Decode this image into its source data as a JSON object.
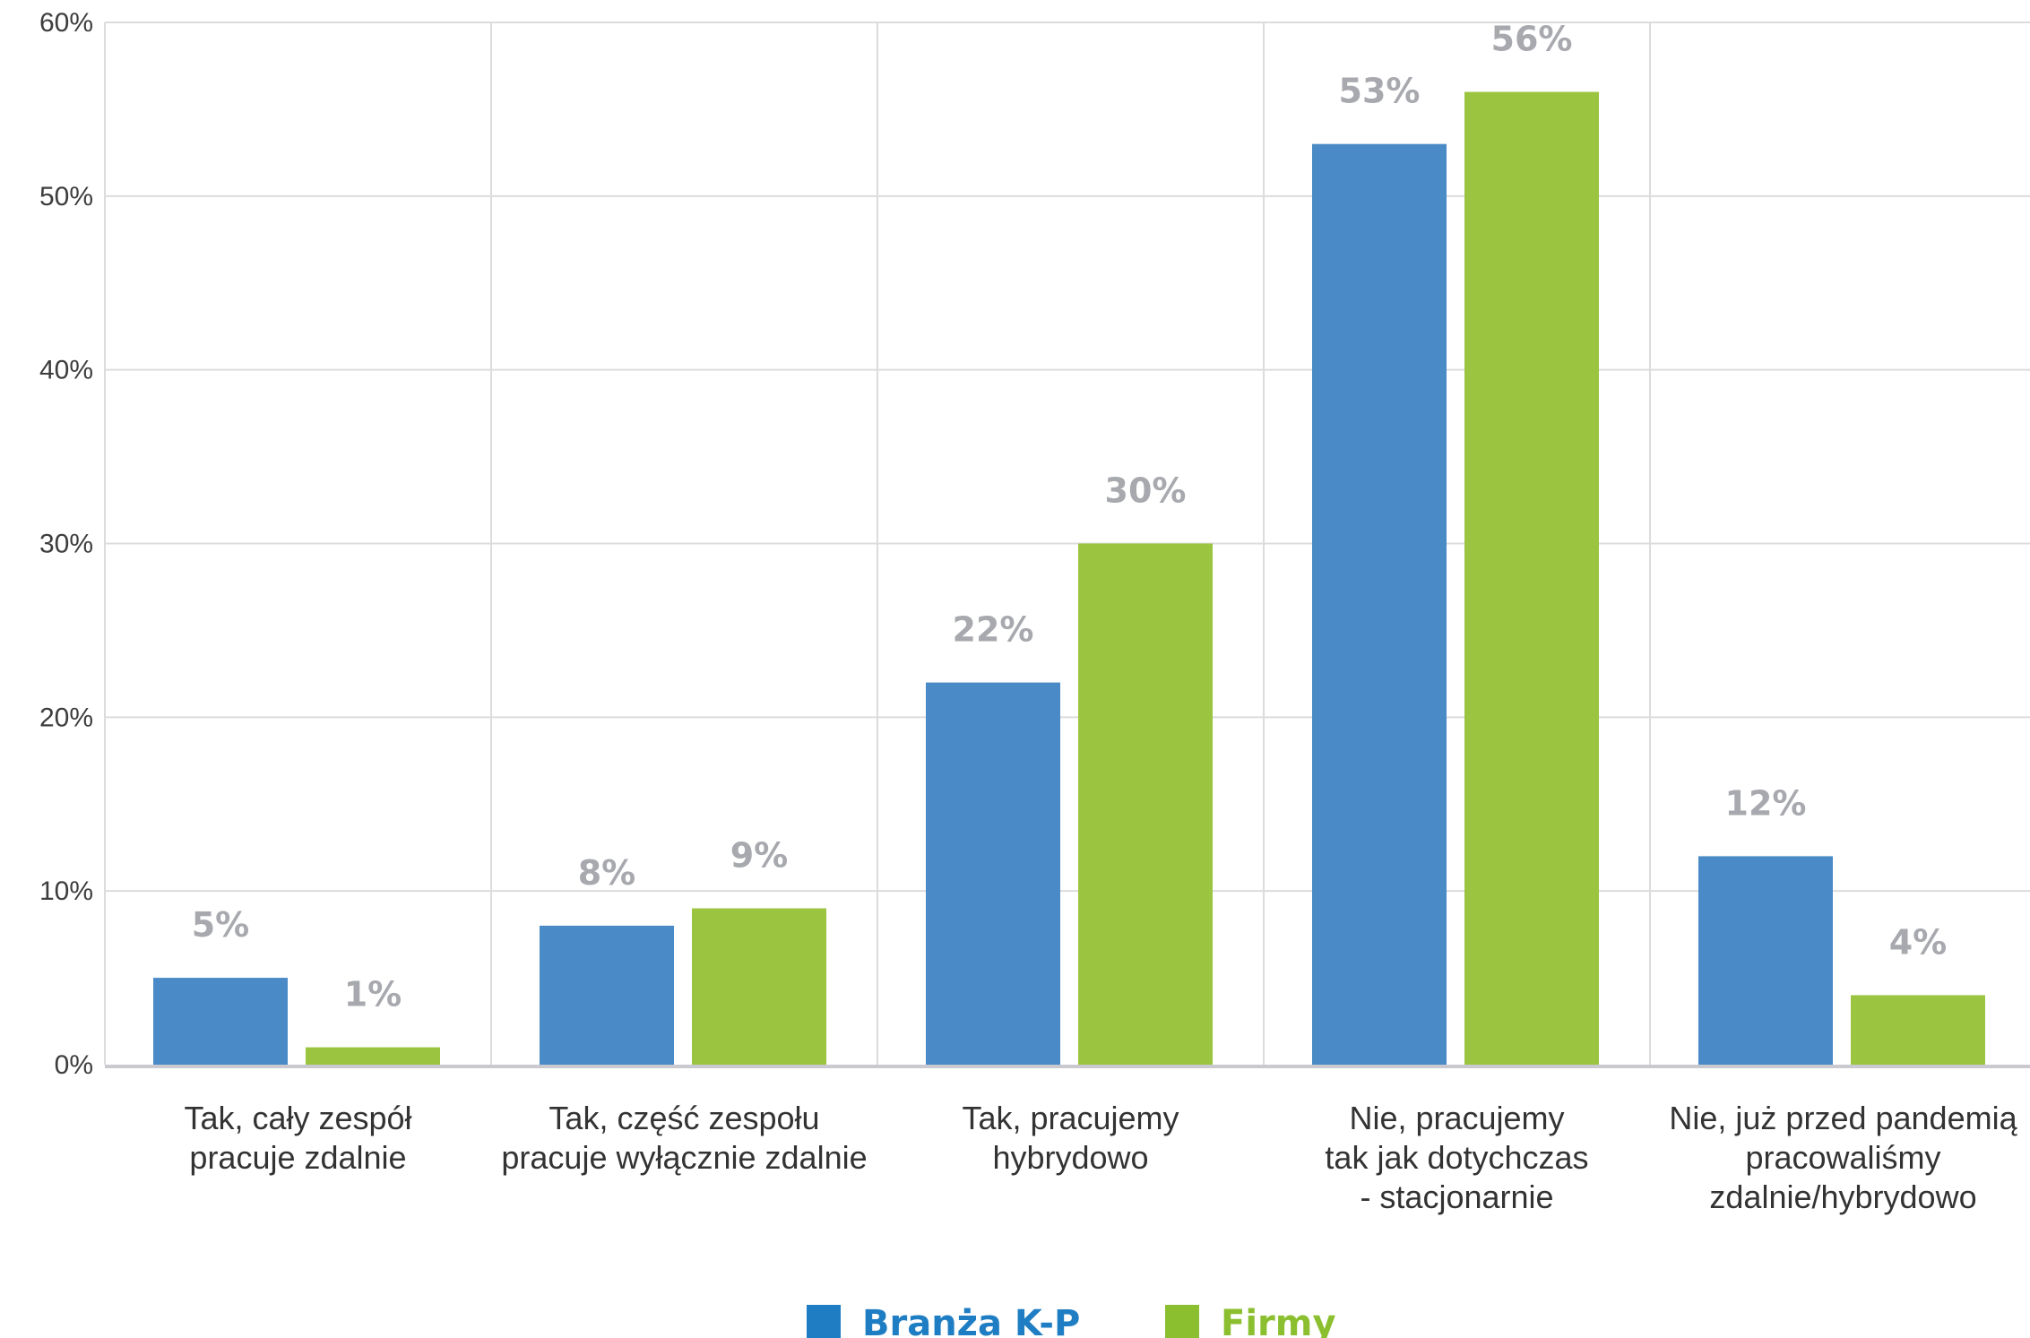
{
  "chart_data": {
    "type": "bar",
    "categories": [
      [
        "Tak, cały zespół",
        "pracuje zdalnie"
      ],
      [
        "Tak, część zespołu",
        "pracuje wyłącznie zdalnie"
      ],
      [
        "Tak,  pracujemy",
        "hybrydowo"
      ],
      [
        "Nie, pracujemy",
        "tak jak dotychczas",
        "- stacjonarnie"
      ],
      [
        "Nie, już przed pandemią",
        "pracowaliśmy",
        "zdalnie/hybrydowo"
      ]
    ],
    "series": [
      {
        "name": "Branża K-P",
        "color": "#4a8ac6",
        "legend_color": "#1f7ec3",
        "values": [
          5,
          8,
          22,
          53,
          12
        ],
        "labels": [
          "5%",
          "8%",
          "22%",
          "53%",
          "12%"
        ]
      },
      {
        "name": "Firmy",
        "color": "#9bc441",
        "legend_color": "#8bbf2f",
        "values": [
          1,
          9,
          30,
          56,
          4
        ],
        "labels": [
          "1%",
          "9%",
          "30%",
          "56%",
          "4%"
        ]
      }
    ],
    "ylim": [
      0,
      60
    ],
    "yticks": [
      0,
      10,
      20,
      30,
      40,
      50,
      60
    ],
    "ytick_labels": [
      "0%",
      "10%",
      "20%",
      "30%",
      "40%",
      "50%",
      "60%"
    ],
    "grid": true,
    "legend_position": "bottom-center",
    "title": "",
    "xlabel": "",
    "ylabel": ""
  }
}
